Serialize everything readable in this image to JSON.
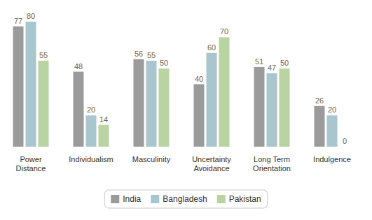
{
  "chart_data": {
    "type": "bar",
    "categories": [
      "Power Distance",
      "Individualism",
      "Masculinity",
      "Uncertainty Avoidance",
      "Long Term Orientation",
      "Indulgence"
    ],
    "series": [
      {
        "name": "India",
        "color": "#9b9b9b",
        "values": [
          77,
          48,
          56,
          40,
          51,
          26
        ]
      },
      {
        "name": "Bangladesh",
        "color": "#a9c5ce",
        "values": [
          80,
          20,
          55,
          60,
          47,
          20
        ]
      },
      {
        "name": "Pakistan",
        "color": "#bad3a2",
        "values": [
          55,
          14,
          50,
          70,
          50,
          0
        ]
      }
    ],
    "ylim": [
      0,
      80
    ],
    "tick_labels": "x",
    "data_labels": true,
    "legend": "bottom"
  }
}
